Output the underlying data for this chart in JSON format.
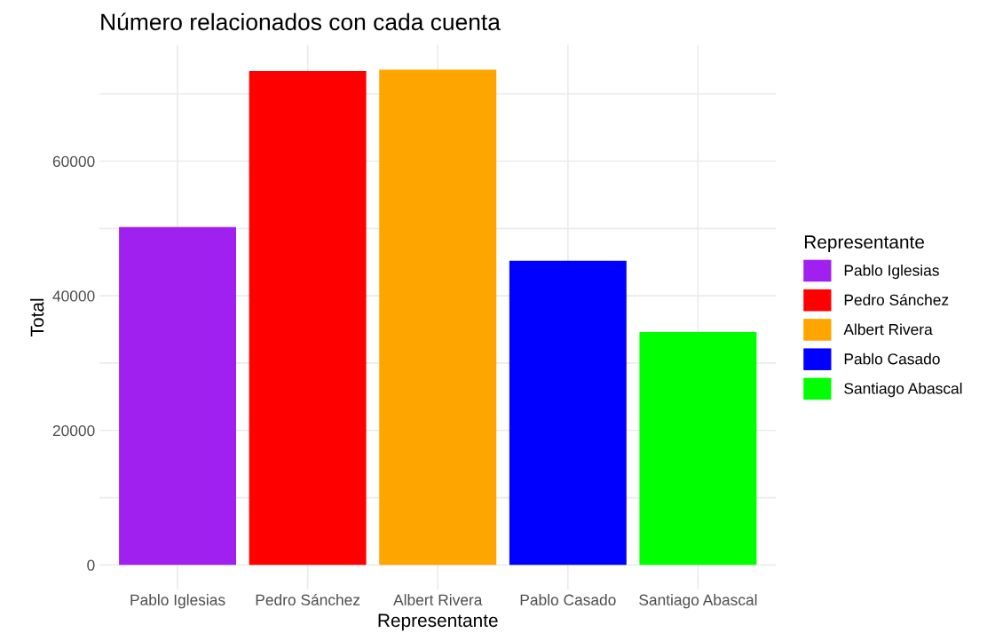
{
  "chart_data": {
    "type": "bar",
    "title": "Número relacionados con cada cuenta",
    "xlabel": "Representante",
    "ylabel": "Total",
    "legend_title": "Representante",
    "categories": [
      "Pablo Iglesias",
      "Pedro Sánchez",
      "Albert Rivera",
      "Pablo Casado",
      "Santiago Abascal"
    ],
    "series": [
      {
        "name": "Pablo Iglesias",
        "color": "#a020f0",
        "values": [
          50200,
          null,
          null,
          null,
          null
        ]
      },
      {
        "name": "Pedro Sánchez",
        "color": "#ff0000",
        "values": [
          null,
          73400,
          null,
          null,
          null
        ]
      },
      {
        "name": "Albert Rivera",
        "color": "#ffa500",
        "values": [
          null,
          null,
          73600,
          null,
          null
        ]
      },
      {
        "name": "Pablo Casado",
        "color": "#0000ff",
        "values": [
          null,
          null,
          null,
          45200,
          null
        ]
      },
      {
        "name": "Santiago Abascal",
        "color": "#00ff00",
        "values": [
          null,
          null,
          null,
          null,
          34600
        ]
      }
    ],
    "ylim": [
      -3680,
      77280
    ],
    "yticks": [
      0,
      {
        "value": 10000,
        "label": null
      },
      20000,
      {
        "value": 30000,
        "label": null
      },
      40000,
      {
        "value": 50000,
        "label": null
      },
      60000,
      {
        "value": 70000,
        "label": null
      }
    ],
    "grid": true,
    "legend": "right"
  }
}
